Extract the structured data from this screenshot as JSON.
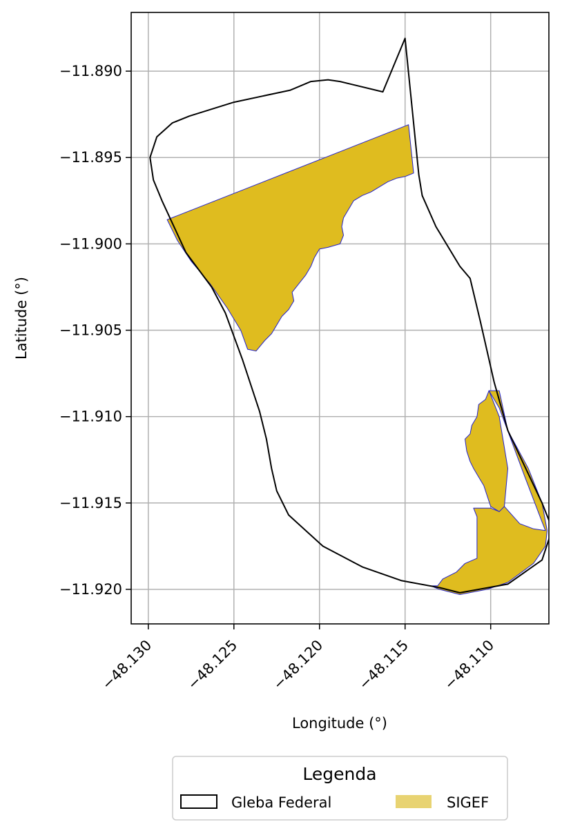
{
  "map": {
    "xlabel": "Longitude (°)",
    "ylabel": "Latitude (°)",
    "xlim": [
      -48.131,
      -48.1066
    ],
    "ylim": [
      -11.922,
      -11.8866
    ],
    "grid": true,
    "xticks": [
      -48.13,
      -48.125,
      -48.12,
      -48.115,
      -48.11
    ],
    "xtick_labels": [
      "−48.130",
      "−48.125",
      "−48.120",
      "−48.115",
      "−48.110"
    ],
    "yticks": [
      -11.89,
      -11.895,
      -11.9,
      -11.905,
      -11.91,
      -11.915,
      -11.92
    ],
    "ytick_labels": [
      "−11.890",
      "−11.895",
      "−11.900",
      "−11.905",
      "−11.910",
      "−11.915",
      "−11.920"
    ],
    "colors": {
      "gleba_edge": "#000000",
      "sigef_fill": "#DFBC1F",
      "sigef_edge": "#1F1FD0",
      "legend_sigef_patch": "#E8D372",
      "grid": "#b0b0b0"
    },
    "legend": {
      "title": "Legenda",
      "placement": "bottom-center",
      "items": [
        {
          "label": "Gleba Federal",
          "style": "outline"
        },
        {
          "label": "SIGEF",
          "style": "fill"
        }
      ]
    },
    "layers": {
      "gleba_federal": [
        [
          -48.1299,
          -11.895
        ],
        [
          -48.1295,
          -11.8938
        ],
        [
          -48.1286,
          -11.893
        ],
        [
          -48.1276,
          -11.8926
        ],
        [
          -48.125,
          -11.8918
        ],
        [
          -48.1217,
          -11.8911
        ],
        [
          -48.1205,
          -11.8906
        ],
        [
          -48.1195,
          -11.8905
        ],
        [
          -48.1188,
          -11.8906
        ],
        [
          -48.1163,
          -11.8912
        ],
        [
          -48.115,
          -11.8881
        ],
        [
          -48.1142,
          -11.896
        ],
        [
          -48.114,
          -11.8972
        ],
        [
          -48.1132,
          -11.899
        ],
        [
          -48.1118,
          -11.9013
        ],
        [
          -48.1112,
          -11.902
        ],
        [
          -48.1106,
          -11.9045
        ],
        [
          -48.1098,
          -11.908
        ],
        [
          -48.109,
          -11.9108
        ],
        [
          -48.107,
          -11.915
        ],
        [
          -48.1064,
          -11.9165
        ],
        [
          -48.107,
          -11.9183
        ],
        [
          -48.109,
          -11.9197
        ],
        [
          -48.1118,
          -11.9202
        ],
        [
          -48.113,
          -11.9199
        ],
        [
          -48.1152,
          -11.9195
        ],
        [
          -48.1175,
          -11.9187
        ],
        [
          -48.1198,
          -11.9175
        ],
        [
          -48.1218,
          -11.9157
        ],
        [
          -48.1225,
          -11.9143
        ],
        [
          -48.1228,
          -11.913
        ],
        [
          -48.1231,
          -11.9113
        ],
        [
          -48.1235,
          -11.9097
        ],
        [
          -48.1245,
          -11.9067
        ],
        [
          -48.1255,
          -11.904
        ],
        [
          -48.1263,
          -11.9025
        ],
        [
          -48.1278,
          -11.9005
        ],
        [
          -48.1285,
          -11.899
        ],
        [
          -48.1292,
          -11.8975
        ],
        [
          -48.1297,
          -11.8963
        ]
      ],
      "sigef": [
        [
          [
            -48.1289,
            -11.8986
          ],
          [
            -48.1148,
            -11.8931
          ],
          [
            -48.1145,
            -11.8959
          ],
          [
            -48.115,
            -11.8961
          ],
          [
            -48.1155,
            -11.8962
          ],
          [
            -48.116,
            -11.8964
          ],
          [
            -48.1165,
            -11.8967
          ],
          [
            -48.117,
            -11.897
          ],
          [
            -48.1175,
            -11.8972
          ],
          [
            -48.118,
            -11.8975
          ],
          [
            -48.1183,
            -11.898
          ],
          [
            -48.1186,
            -11.8985
          ],
          [
            -48.1187,
            -11.899
          ],
          [
            -48.1186,
            -11.8995
          ],
          [
            -48.1188,
            -11.9
          ],
          [
            -48.1195,
            -11.9002
          ],
          [
            -48.12,
            -11.9003
          ],
          [
            -48.1203,
            -11.9008
          ],
          [
            -48.1205,
            -11.9013
          ],
          [
            -48.1208,
            -11.9018
          ],
          [
            -48.1212,
            -11.9023
          ],
          [
            -48.1216,
            -11.9028
          ],
          [
            -48.1215,
            -11.9033
          ],
          [
            -48.1218,
            -11.9038
          ],
          [
            -48.1222,
            -11.9042
          ],
          [
            -48.1225,
            -11.9047
          ],
          [
            -48.1228,
            -11.9052
          ],
          [
            -48.1232,
            -11.9056
          ],
          [
            -48.1237,
            -11.9062
          ],
          [
            -48.1242,
            -11.9061
          ],
          [
            -48.1246,
            -11.905
          ],
          [
            -48.1254,
            -11.9037
          ],
          [
            -48.1264,
            -11.9023
          ],
          [
            -48.1275,
            -11.901
          ],
          [
            -48.1283,
            -11.8998
          ]
        ],
        [
          [
            -48.1101,
            -11.9085
          ],
          [
            -48.1095,
            -11.9095
          ],
          [
            -48.108,
            -11.9135
          ],
          [
            -48.107,
            -11.9161
          ],
          [
            -48.1068,
            -11.9166
          ],
          [
            -48.1075,
            -11.9165
          ],
          [
            -48.1083,
            -11.9162
          ],
          [
            -48.1092,
            -11.9152
          ],
          [
            -48.1095,
            -11.9155
          ],
          [
            -48.11,
            -11.9153
          ],
          [
            -48.111,
            -11.9153
          ],
          [
            -48.1108,
            -11.9158
          ],
          [
            -48.1108,
            -11.9182
          ],
          [
            -48.1115,
            -11.9185
          ],
          [
            -48.112,
            -11.919
          ],
          [
            -48.1128,
            -11.9194
          ],
          [
            -48.1131,
            -11.9198
          ],
          [
            -48.1135,
            -11.9198
          ],
          [
            -48.113,
            -11.92
          ],
          [
            -48.1118,
            -11.9203
          ],
          [
            -48.1102,
            -11.92
          ],
          [
            -48.109,
            -11.9196
          ],
          [
            -48.1075,
            -11.9185
          ],
          [
            -48.1068,
            -11.9175
          ],
          [
            -48.1067,
            -11.9166
          ],
          [
            -48.107,
            -11.915
          ],
          [
            -48.1078,
            -11.913
          ],
          [
            -48.109,
            -11.9108
          ],
          [
            -48.1095,
            -11.9085
          ]
        ],
        [
          [
            -48.1101,
            -11.9085
          ],
          [
            -48.1103,
            -11.909
          ],
          [
            -48.1107,
            -11.9093
          ],
          [
            -48.1108,
            -11.91
          ],
          [
            -48.1111,
            -11.9105
          ],
          [
            -48.1112,
            -11.911
          ],
          [
            -48.1115,
            -11.9113
          ],
          [
            -48.1114,
            -11.912
          ],
          [
            -48.1112,
            -11.9126
          ],
          [
            -48.111,
            -11.913
          ],
          [
            -48.1107,
            -11.9135
          ],
          [
            -48.1104,
            -11.914
          ],
          [
            -48.1102,
            -11.9146
          ],
          [
            -48.11,
            -11.9152
          ],
          [
            -48.1095,
            -11.9155
          ],
          [
            -48.1092,
            -11.9152
          ],
          [
            -48.109,
            -11.913
          ],
          [
            -48.1095,
            -11.91
          ]
        ]
      ]
    }
  }
}
